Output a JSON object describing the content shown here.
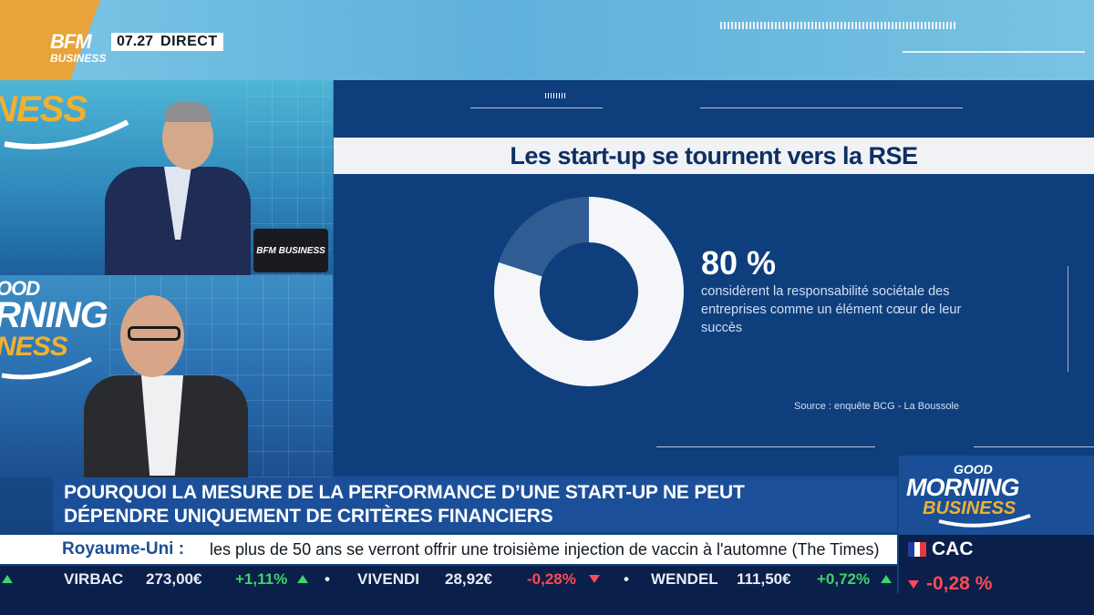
{
  "broadcast": {
    "channel_logo_line1": "BFM",
    "channel_logo_line2": "BUSINESS",
    "clock": "07.27",
    "live_label": "DIRECT"
  },
  "studio": {
    "bg_logo_top": "INESS",
    "bg_logo_bottom_1": "OOD",
    "bg_logo_bottom_2": "RNING",
    "bg_logo_bottom_3": "NESS",
    "laptop_label": "BFM BUSINESS"
  },
  "chart_data": {
    "type": "pie",
    "style": "donut",
    "title": "Les start-up se tournent vers la RSE",
    "slices": [
      {
        "label": "considèrent la responsabilité sociétale des entreprises comme un élément cœur de leur succès",
        "value": 80,
        "color": "#f4f6f9"
      },
      {
        "label": "",
        "value": 20,
        "color": "#2f5c93"
      }
    ],
    "value_label": "80 %",
    "description": "considèrent la responsabilité sociétale des entreprises comme un élément cœur de leur succès",
    "source": "Source : enquête BCG - La Boussole"
  },
  "lower_third": {
    "headline_line1": "POURQUOI LA MESURE DE LA PERFORMANCE D’UNE START-UP NE PEUT",
    "headline_line2": "DÉPENDRE UNIQUEMENT DE CRITÈRES FINANCIERS",
    "news_prefix": "Royaume-Uni :",
    "news_text": "les plus de 50 ans se verront offrir une troisième injection de vaccin à l'automne (The Times)"
  },
  "ticker": [
    {
      "name": "VIRBAC",
      "price": "273,00€",
      "change": "+1,11%",
      "dir": "up"
    },
    {
      "name": "VIVENDI",
      "price": "28,92€",
      "change": "-0,28%",
      "dir": "down"
    },
    {
      "name": "WENDEL",
      "price": "111,50€",
      "change": "+0,72%",
      "dir": "up"
    }
  ],
  "show": {
    "logo_line1": "GOOD",
    "logo_line2": "MORNING",
    "logo_line3": "BUSINESS"
  },
  "index": {
    "name": "CAC",
    "change": "-0,28 %",
    "dir": "down"
  },
  "colors": {
    "panel": "#0f3e7c",
    "headline_box": "#1b4f99",
    "up": "#3fd36a",
    "down": "#ff4a55"
  }
}
